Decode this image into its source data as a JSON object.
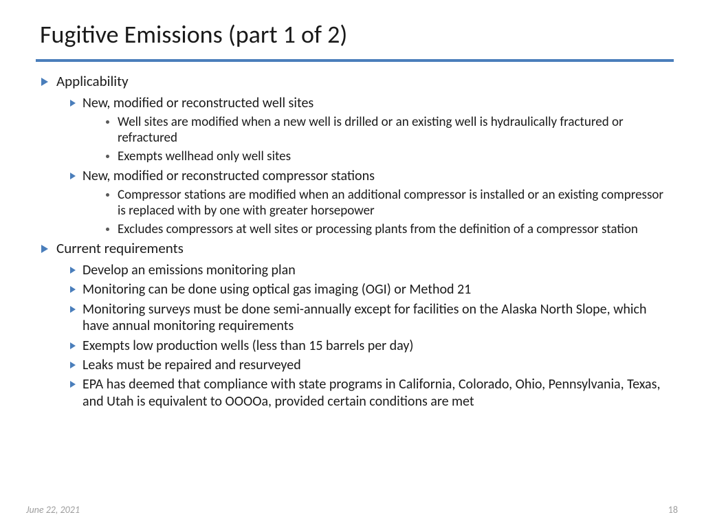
{
  "colors": {
    "accent": "#4a7ebb",
    "text": "#1a1a1a",
    "dot": "#595959",
    "footer": "#9e9e9e",
    "background": "#ffffff"
  },
  "title": "Fugitive Emissions (part 1 of 2)",
  "bullets": {
    "applicability": {
      "label": "Applicability",
      "well_sites": {
        "label": "New, modified or reconstructed well sites",
        "sub1": "Well sites are modified when a new well is drilled or an existing well is hydraulically fractured or refractured",
        "sub2": "Exempts wellhead only well sites"
      },
      "compressor": {
        "label": "New, modified or reconstructed compressor stations",
        "sub1": "Compressor stations are modified when an additional compressor is installed or an existing compressor is replaced with by one with greater horsepower",
        "sub2": "Excludes compressors at well sites or processing plants from the definition of a compressor station"
      }
    },
    "requirements": {
      "label": "Current requirements",
      "r1": "Develop an emissions monitoring plan",
      "r2": "Monitoring can be done using optical gas imaging (OGI) or Method 21",
      "r3": "Monitoring surveys must be done semi-annually except for facilities on the Alaska North Slope, which have annual monitoring requirements",
      "r4": "Exempts low production wells (less than 15 barrels per day)",
      "r5": "Leaks must be repaired and resurveyed",
      "r6": "EPA has deemed that compliance with state programs in California, Colorado, Ohio, Pennsylvania, Texas, and Utah is equivalent to OOOOa, provided certain conditions are met"
    }
  },
  "footer": {
    "date": "June 22, 2021",
    "page": "18"
  }
}
